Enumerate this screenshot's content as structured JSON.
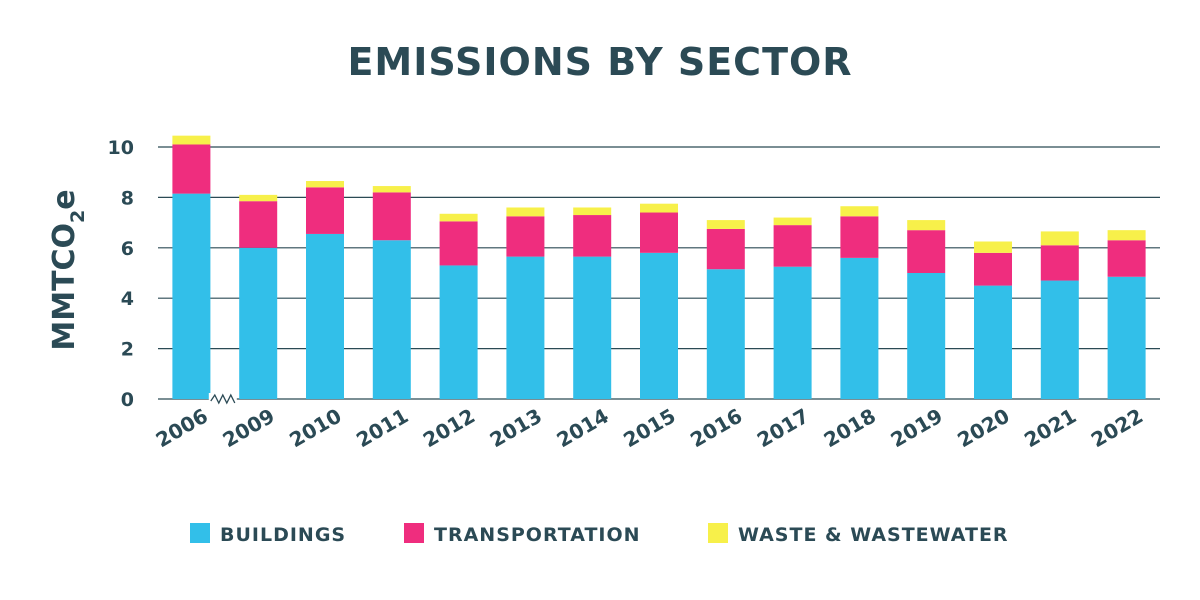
{
  "chart_data": {
    "type": "bar",
    "stacked": true,
    "title": "EMISSIONS BY SECTOR",
    "ylabel_main": "MMTCO",
    "ylabel_sub": "2",
    "ylabel_tail": "e",
    "xlabel": "",
    "ylim": [
      0,
      10
    ],
    "yticks": [
      "0",
      "2",
      "4",
      "6",
      "8",
      "10"
    ],
    "grid": true,
    "axis_break_after": "2006",
    "legend_position": "bottom",
    "categories": [
      "2006",
      "2009",
      "2010",
      "2011",
      "2012",
      "2013",
      "2014",
      "2015",
      "2016",
      "2017",
      "2018",
      "2019",
      "2020",
      "2021",
      "2022"
    ],
    "series": [
      {
        "name": "BUILDINGS",
        "color": "#32bfe9",
        "values": [
          8.15,
          6.0,
          6.55,
          6.3,
          5.3,
          5.65,
          5.65,
          5.8,
          5.15,
          5.25,
          5.6,
          5.0,
          4.5,
          4.7,
          4.85
        ]
      },
      {
        "name": "TRANSPORTATION",
        "color": "#ef2d7e",
        "values": [
          1.95,
          1.85,
          1.85,
          1.9,
          1.75,
          1.6,
          1.65,
          1.6,
          1.6,
          1.65,
          1.65,
          1.7,
          1.3,
          1.4,
          1.45
        ]
      },
      {
        "name": "WASTE & WASTEWATER",
        "color": "#f7f04a",
        "values": [
          0.35,
          0.25,
          0.25,
          0.25,
          0.3,
          0.35,
          0.3,
          0.35,
          0.35,
          0.3,
          0.4,
          0.4,
          0.45,
          0.55,
          0.4
        ]
      }
    ]
  }
}
